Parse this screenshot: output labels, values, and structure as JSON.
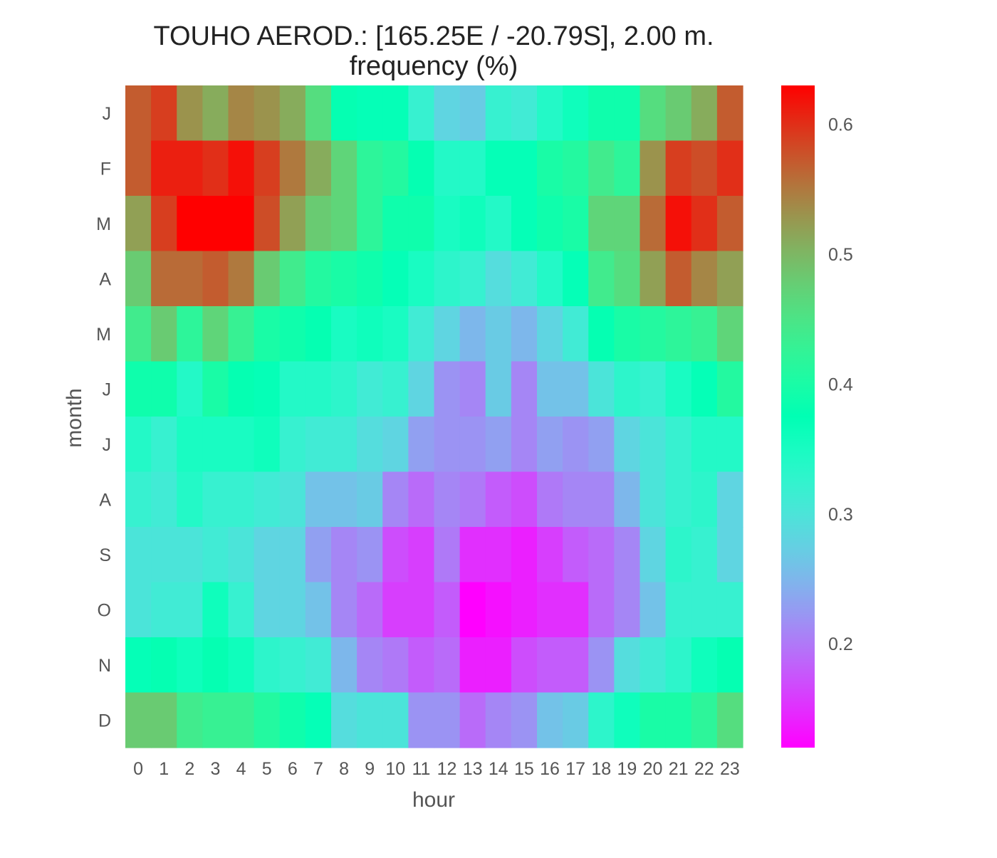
{
  "chart_data": {
    "type": "heatmap",
    "title": "TOUHO AEROD.: [165.25E / -20.79S], 2.00 m.",
    "subtitle": "frequency (%)",
    "xlabel": "hour",
    "ylabel": "month",
    "x_categories": [
      "0",
      "1",
      "2",
      "3",
      "4",
      "5",
      "6",
      "7",
      "8",
      "9",
      "10",
      "11",
      "12",
      "13",
      "14",
      "15",
      "16",
      "17",
      "18",
      "19",
      "20",
      "21",
      "22",
      "23"
    ],
    "y_categories": [
      "J",
      "F",
      "M",
      "A",
      "M",
      "J",
      "J",
      "A",
      "S",
      "O",
      "N",
      "D"
    ],
    "colormap": "rainbow",
    "colorbar": {
      "vmin": 0.12,
      "vmax": 0.63,
      "ticks": [
        0.2,
        0.3,
        0.4,
        0.5,
        0.6
      ],
      "tick_labels": [
        "0.2",
        "0.3",
        "0.4",
        "0.5",
        "0.6"
      ]
    },
    "values": [
      [
        0.57,
        0.59,
        0.53,
        0.51,
        0.54,
        0.53,
        0.51,
        0.46,
        0.38,
        0.37,
        0.37,
        0.32,
        0.28,
        0.27,
        0.32,
        0.31,
        0.34,
        0.36,
        0.39,
        0.39,
        0.46,
        0.48,
        0.51,
        0.57
      ],
      [
        0.57,
        0.61,
        0.61,
        0.6,
        0.62,
        0.59,
        0.55,
        0.51,
        0.47,
        0.42,
        0.41,
        0.38,
        0.34,
        0.34,
        0.37,
        0.37,
        0.4,
        0.41,
        0.44,
        0.42,
        0.53,
        0.59,
        0.58,
        0.6
      ],
      [
        0.52,
        0.59,
        0.63,
        0.63,
        0.63,
        0.58,
        0.52,
        0.48,
        0.47,
        0.42,
        0.39,
        0.39,
        0.35,
        0.36,
        0.34,
        0.37,
        0.39,
        0.4,
        0.47,
        0.47,
        0.56,
        0.62,
        0.6,
        0.57
      ],
      [
        0.48,
        0.56,
        0.56,
        0.57,
        0.55,
        0.48,
        0.44,
        0.41,
        0.4,
        0.39,
        0.37,
        0.35,
        0.33,
        0.32,
        0.29,
        0.31,
        0.34,
        0.37,
        0.44,
        0.46,
        0.52,
        0.57,
        0.54,
        0.52
      ],
      [
        0.44,
        0.48,
        0.42,
        0.47,
        0.43,
        0.4,
        0.39,
        0.38,
        0.35,
        0.36,
        0.35,
        0.31,
        0.28,
        0.25,
        0.27,
        0.25,
        0.28,
        0.31,
        0.38,
        0.4,
        0.41,
        0.42,
        0.43,
        0.47
      ],
      [
        0.39,
        0.39,
        0.34,
        0.4,
        0.38,
        0.37,
        0.34,
        0.34,
        0.33,
        0.31,
        0.32,
        0.28,
        0.22,
        0.21,
        0.27,
        0.21,
        0.26,
        0.26,
        0.3,
        0.33,
        0.32,
        0.35,
        0.37,
        0.41
      ],
      [
        0.34,
        0.32,
        0.35,
        0.35,
        0.35,
        0.36,
        0.32,
        0.31,
        0.31,
        0.29,
        0.28,
        0.23,
        0.22,
        0.22,
        0.23,
        0.21,
        0.23,
        0.22,
        0.23,
        0.28,
        0.3,
        0.32,
        0.34,
        0.34
      ],
      [
        0.32,
        0.31,
        0.34,
        0.32,
        0.32,
        0.31,
        0.3,
        0.26,
        0.26,
        0.27,
        0.21,
        0.19,
        0.21,
        0.2,
        0.18,
        0.17,
        0.2,
        0.21,
        0.21,
        0.25,
        0.3,
        0.32,
        0.33,
        0.28
      ],
      [
        0.3,
        0.3,
        0.3,
        0.31,
        0.3,
        0.28,
        0.28,
        0.23,
        0.21,
        0.22,
        0.17,
        0.16,
        0.2,
        0.15,
        0.15,
        0.14,
        0.16,
        0.18,
        0.19,
        0.21,
        0.28,
        0.33,
        0.32,
        0.28
      ],
      [
        0.3,
        0.31,
        0.31,
        0.36,
        0.32,
        0.28,
        0.28,
        0.26,
        0.21,
        0.19,
        0.16,
        0.16,
        0.18,
        0.12,
        0.13,
        0.14,
        0.15,
        0.15,
        0.19,
        0.21,
        0.26,
        0.32,
        0.32,
        0.32
      ],
      [
        0.37,
        0.38,
        0.36,
        0.38,
        0.36,
        0.33,
        0.32,
        0.31,
        0.25,
        0.21,
        0.2,
        0.18,
        0.19,
        0.14,
        0.14,
        0.17,
        0.18,
        0.18,
        0.22,
        0.29,
        0.31,
        0.33,
        0.36,
        0.38
      ],
      [
        0.48,
        0.48,
        0.44,
        0.43,
        0.43,
        0.41,
        0.39,
        0.37,
        0.29,
        0.3,
        0.3,
        0.22,
        0.22,
        0.19,
        0.21,
        0.22,
        0.26,
        0.27,
        0.33,
        0.36,
        0.4,
        0.4,
        0.42,
        0.46
      ]
    ]
  }
}
